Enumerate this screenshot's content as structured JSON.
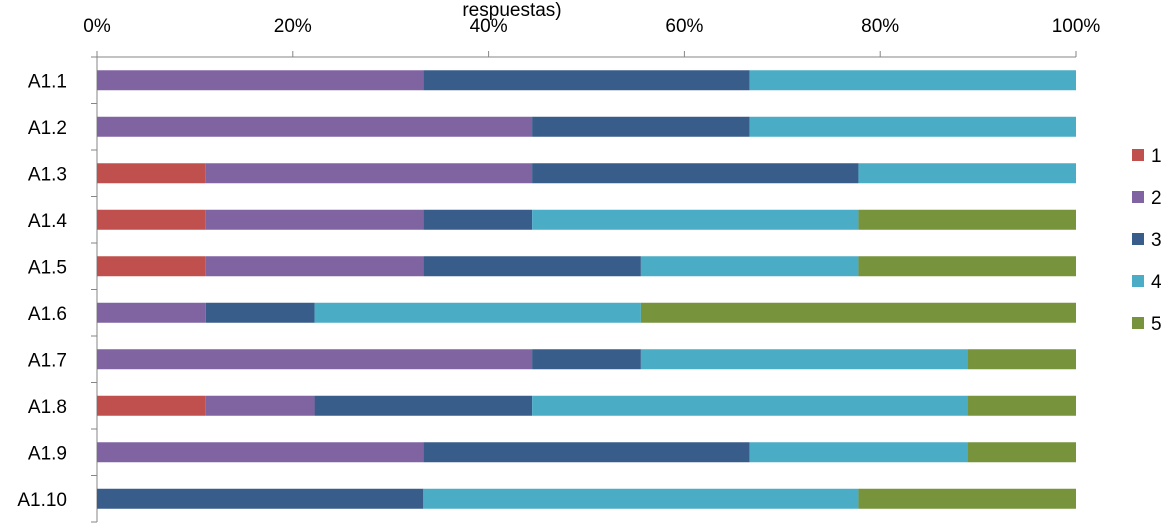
{
  "chart_data": {
    "type": "bar",
    "orientation": "horizontal",
    "stacked": "percent",
    "title": "respuestas)",
    "xlim": [
      0,
      100
    ],
    "x_ticks": [
      "0%",
      "20%",
      "40%",
      "60%",
      "80%",
      "100%"
    ],
    "x_tick_values": [
      0,
      20,
      40,
      60,
      80,
      100
    ],
    "x_axis_position": "top",
    "grid": false,
    "legend_position": "right",
    "categories": [
      "A1.1",
      "A1.2",
      "A1.3",
      "A1.4",
      "A1.5",
      "A1.6",
      "A1.7",
      "A1.8",
      "A1.9",
      "A1.10"
    ],
    "series": [
      {
        "name": "1",
        "color": "#C0504D",
        "values": [
          0,
          0,
          11.1,
          11.1,
          11.1,
          0,
          0,
          11.1,
          0,
          0
        ]
      },
      {
        "name": "2",
        "color": "#8064A2",
        "values": [
          33.3,
          44.4,
          33.3,
          22.2,
          22.2,
          11.1,
          44.4,
          11.1,
          33.3,
          0
        ]
      },
      {
        "name": "3",
        "color": "#385D8A",
        "values": [
          33.3,
          22.2,
          33.3,
          11.1,
          22.2,
          11.1,
          11.1,
          22.2,
          33.3,
          33.3
        ]
      },
      {
        "name": "4",
        "color": "#4BACC6",
        "values": [
          33.3,
          33.3,
          22.2,
          33.3,
          22.2,
          33.3,
          33.3,
          44.4,
          22.2,
          44.4
        ]
      },
      {
        "name": "5",
        "color": "#77933C",
        "values": [
          0,
          0,
          0,
          22.2,
          22.2,
          44.4,
          11.1,
          11.1,
          11.1,
          22.2
        ]
      }
    ]
  }
}
